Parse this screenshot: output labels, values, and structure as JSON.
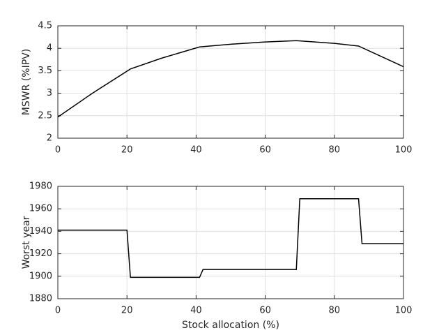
{
  "chart_data": [
    {
      "type": "line",
      "ylabel": "MSWR (%IPV)",
      "x": [
        0,
        10,
        21,
        30,
        41,
        50,
        60,
        69,
        80,
        87,
        100
      ],
      "values": [
        2.47,
        3.0,
        3.54,
        3.78,
        4.03,
        4.09,
        4.14,
        4.17,
        4.11,
        4.05,
        3.59
      ],
      "color": "#000000",
      "xlim": [
        0,
        100
      ],
      "xticks": [
        0,
        20,
        40,
        60,
        80,
        100
      ],
      "ylim": [
        2,
        4.5
      ],
      "yticks": [
        2,
        2.5,
        3,
        3.5,
        4,
        4.5
      ],
      "grid": true
    },
    {
      "type": "line",
      "ylabel": "Worst year",
      "xlabel": "Stock allocation (%)",
      "x": [
        0,
        20,
        21,
        41,
        42,
        69,
        70,
        87,
        88,
        100
      ],
      "values": [
        1941,
        1941,
        1899,
        1899,
        1906,
        1906,
        1969,
        1969,
        1929,
        1929
      ],
      "color": "#000000",
      "xlim": [
        0,
        100
      ],
      "xticks": [
        0,
        20,
        40,
        60,
        80,
        100
      ],
      "ylim": [
        1880,
        1980
      ],
      "yticks": [
        1880,
        1900,
        1920,
        1940,
        1960,
        1980
      ],
      "grid": true
    }
  ]
}
